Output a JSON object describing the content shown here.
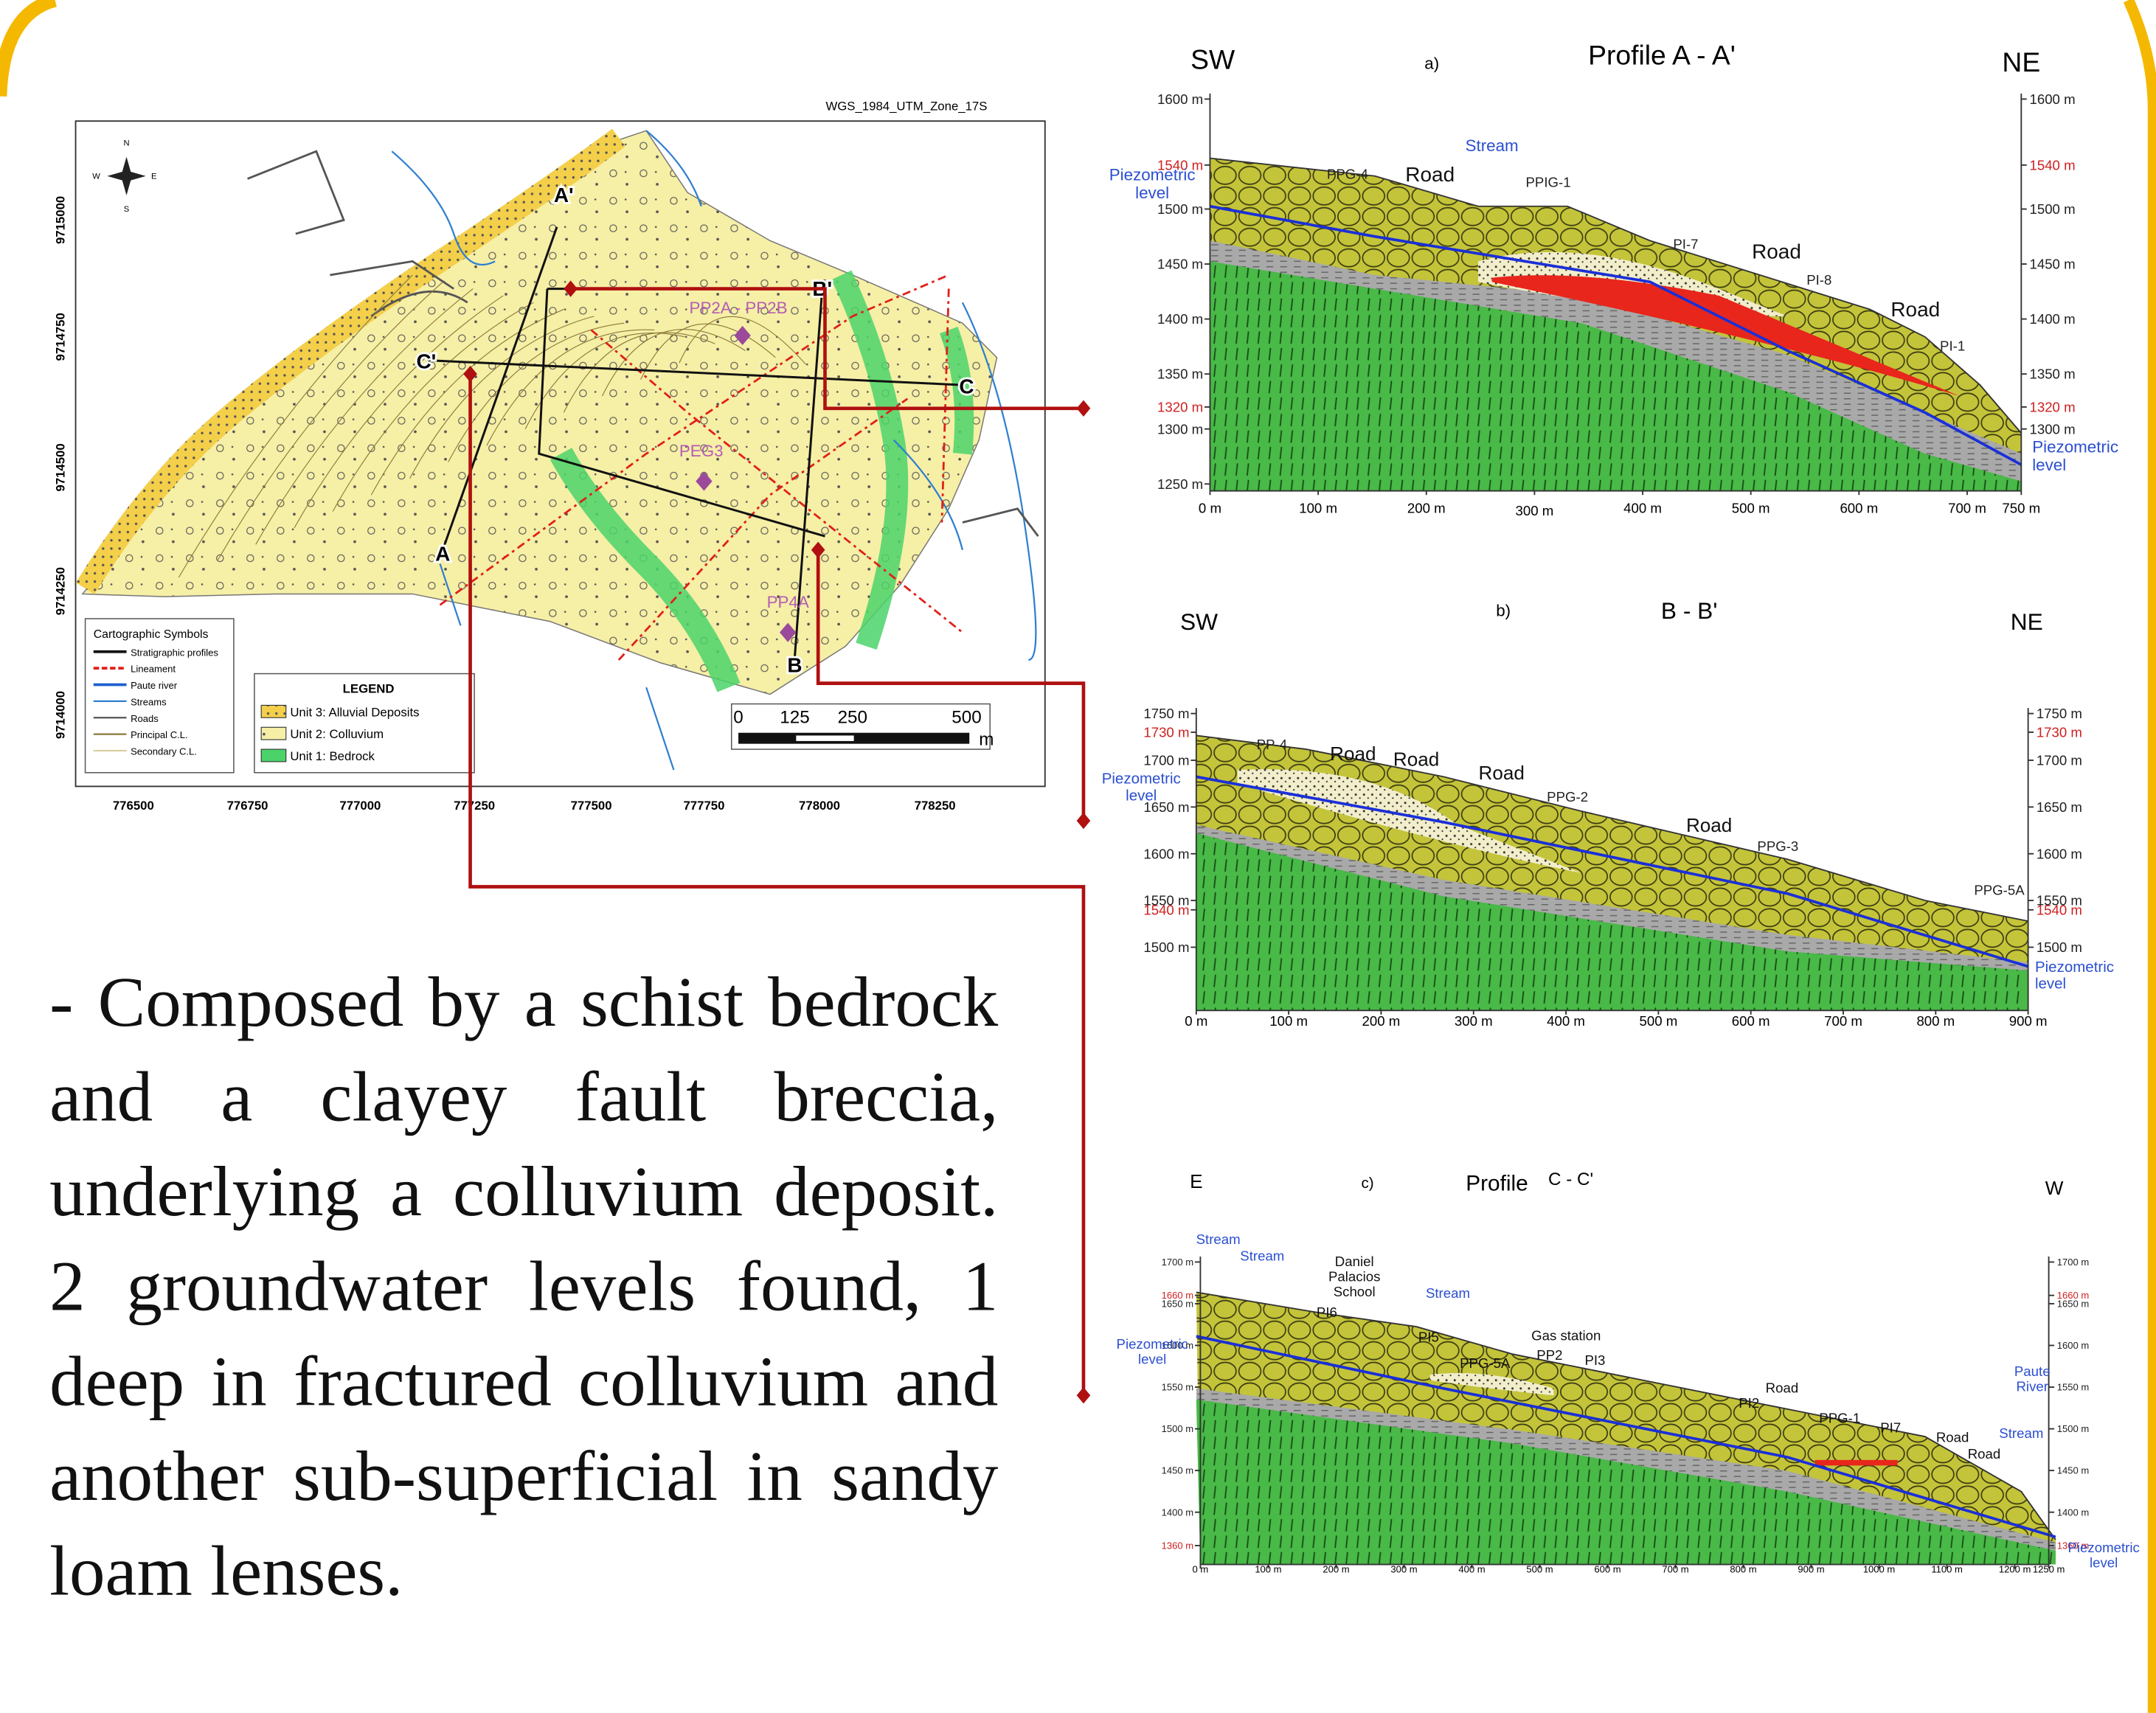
{
  "map": {
    "projection": "WGS_1984_UTM_Zone_17S",
    "northings": [
      "9715000",
      "9714750",
      "9714500",
      "9714250",
      "9714000"
    ],
    "eastings": [
      "776500",
      "776750",
      "777000",
      "777250",
      "777500",
      "777750",
      "778000",
      "778250"
    ],
    "profile_ends": [
      "A",
      "A'",
      "B",
      "B'",
      "C",
      "C'"
    ],
    "sites": [
      "PP2A - PP2B",
      "PEG3",
      "PP4A"
    ],
    "compass": [
      "N",
      "E",
      "S",
      "W"
    ],
    "symbols": {
      "title": "Cartographic Symbols",
      "items": [
        "Stratigraphic profiles",
        "Lineament",
        "Paute river",
        "Streams",
        "Roads",
        "Principal C.L.",
        "Secondary C.L."
      ]
    },
    "legend": {
      "title": "LEGEND",
      "items": [
        "Unit 3: Alluvial Deposits",
        "Unit 2: Colluvium",
        "Unit 1: Bedrock"
      ]
    },
    "scale_bar": [
      "0",
      "125",
      "250",
      "500",
      "m"
    ]
  },
  "description": "- Composed by a schist bedrock and a clayey fault breccia, underlying a colluvium deposit. 2 groundwater levels found, 1 deep in fractured colluvium and another sub-superficial in sandy loam lenses.",
  "profiles": [
    {
      "tag": "a)",
      "title": "Profile A - A'",
      "left": "SW",
      "right": "NE",
      "elevations_left": [
        "1600 m",
        "1540 m",
        "1500 m",
        "1450 m",
        "1400 m",
        "1350 m",
        "1320 m",
        "1300 m",
        "1250 m"
      ],
      "elevations_right": [
        "1600 m",
        "1540 m",
        "1500 m",
        "1450 m",
        "1400 m",
        "1350 m",
        "1320 m",
        "1300 m"
      ],
      "distances": [
        "0 m",
        "100 m",
        "200 m",
        "300 m",
        "400 m",
        "500 m",
        "600 m",
        "700 m",
        "750 m"
      ],
      "labels": [
        "Stream",
        "Piezometric level",
        "Piezometric level",
        "PPG-4",
        "Road",
        "PPIG-1",
        "PI-7",
        "Road",
        "PI-8",
        "Road",
        "PI-1"
      ]
    },
    {
      "tag": "b)",
      "title": "B - B'",
      "left": "SW",
      "right": "NE",
      "elevations_left": [
        "1750 m",
        "1730 m",
        "1700 m",
        "1650 m",
        "1600 m",
        "1550 m",
        "1540 m",
        "1500 m"
      ],
      "elevations_right": [
        "1750 m",
        "1730 m",
        "1700 m",
        "1650 m",
        "1600 m",
        "1550 m",
        "1540 m",
        "1500 m"
      ],
      "distances": [
        "0 m",
        "100 m",
        "200 m",
        "300 m",
        "400 m",
        "500 m",
        "600 m",
        "700 m",
        "800 m",
        "900 m"
      ],
      "labels": [
        "Piezometric level",
        "PP-4",
        "Road",
        "Road",
        "Road",
        "PPG-2",
        "Road",
        "PPG-3",
        "PPG-5A",
        "Piezometric level"
      ]
    },
    {
      "tag": "c)",
      "title": "Profile",
      "section": "C - C'",
      "left": "E",
      "right": "W",
      "elevations_left": [
        "1700 m",
        "1660 m",
        "1650 m",
        "1600 m",
        "1550 m",
        "1500 m",
        "1450 m",
        "1360 m",
        "1400 m"
      ],
      "elevations_right": [
        "1700 m",
        "1660 m",
        "1650 m",
        "1600 m",
        "1550 m",
        "1500 m",
        "1450 m",
        "1360 m",
        "1400 m"
      ],
      "distances": [
        "0 m",
        "100 m",
        "200 m",
        "300 m",
        "400 m",
        "500 m",
        "600 m",
        "700 m",
        "800 m",
        "900 m",
        "1000 m",
        "1100 m",
        "1200 m",
        "1250 m"
      ],
      "labels": [
        "Stream",
        "Stream",
        "Daniel Palacios School",
        "Stream",
        "PI6",
        "PI5",
        "Piezometric level",
        "PPG-5A",
        "Gas station",
        "PP2",
        "PI3",
        "Road",
        "PI2",
        "PPG-1",
        "PI7",
        "Road",
        "Road",
        "Stream",
        "Paute River",
        "Piezometric level"
      ]
    }
  ]
}
